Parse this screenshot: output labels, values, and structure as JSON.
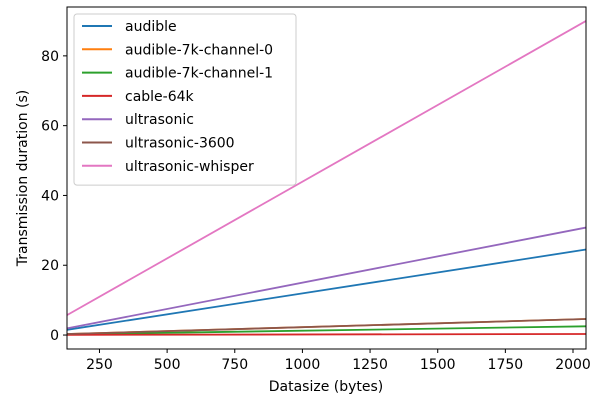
{
  "chart_data": {
    "type": "line",
    "title": "",
    "xlabel": "Datasize (bytes)",
    "ylabel": "Transmission duration (s)",
    "xlim": [
      130,
      2048
    ],
    "ylim": [
      -4,
      94
    ],
    "xticks": [
      250,
      500,
      750,
      1000,
      1250,
      1500,
      1750,
      2000
    ],
    "yticks": [
      0,
      20,
      40,
      60,
      80
    ],
    "grid": false,
    "legend_position": "top-left",
    "series": [
      {
        "name": "audible",
        "color": "#1f77b4",
        "x": [
          130,
          2048
        ],
        "y": [
          1.5,
          24.5
        ]
      },
      {
        "name": "audible-7k-channel-0",
        "color": "#ff7f0e",
        "x": [
          130,
          2048
        ],
        "y": [
          0.3,
          4.6
        ]
      },
      {
        "name": "audible-7k-channel-1",
        "color": "#2ca02c",
        "x": [
          130,
          2048
        ],
        "y": [
          0.2,
          2.5
        ]
      },
      {
        "name": "cable-64k",
        "color": "#d62728",
        "x": [
          130,
          2048
        ],
        "y": [
          0.05,
          0.3
        ]
      },
      {
        "name": "ultrasonic",
        "color": "#9467bd",
        "x": [
          130,
          2048
        ],
        "y": [
          1.9,
          30.8
        ]
      },
      {
        "name": "ultrasonic-3600",
        "color": "#8c564b",
        "x": [
          130,
          2048
        ],
        "y": [
          0.3,
          4.6
        ]
      },
      {
        "name": "ultrasonic-whisper",
        "color": "#e377c2",
        "x": [
          130,
          2048
        ],
        "y": [
          5.7,
          90.0
        ]
      }
    ]
  }
}
